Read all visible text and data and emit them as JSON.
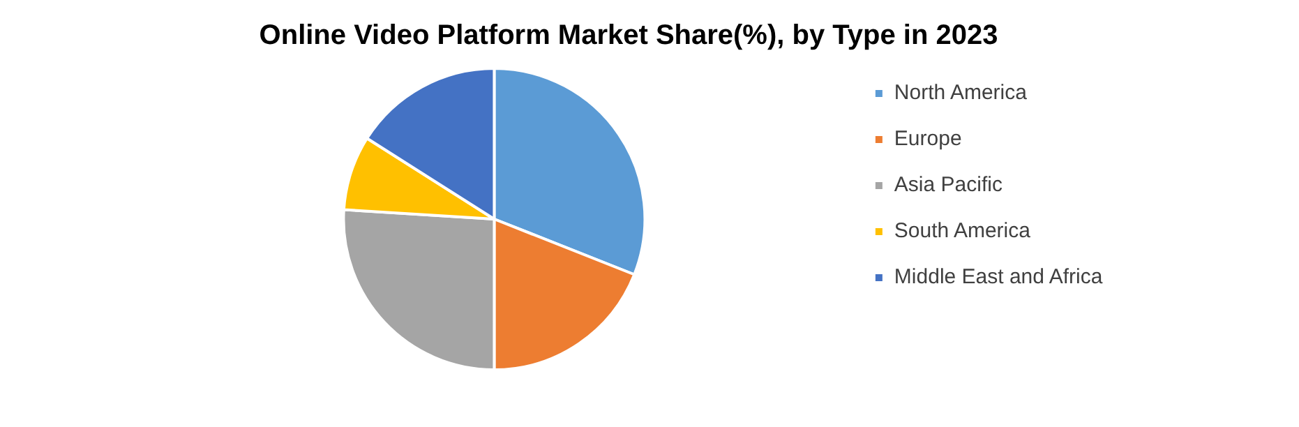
{
  "chart_data": {
    "type": "pie",
    "title": "Online Video Platform Market Share(%), by Type in 2023",
    "categories": [
      "North America",
      "Europe",
      "Asia Pacific",
      "South America",
      "Middle East and Africa"
    ],
    "values": [
      31,
      19,
      26,
      8,
      16
    ],
    "colors": [
      "#5b9bd5",
      "#ed7d31",
      "#a5a5a5",
      "#ffc000",
      "#4472c4"
    ],
    "legend": "right"
  }
}
